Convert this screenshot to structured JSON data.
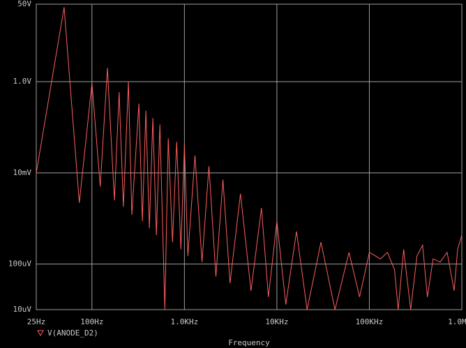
{
  "chart_data": {
    "type": "line",
    "x_label": "Frequency",
    "xscale": "log",
    "yscale": "log",
    "grid": true,
    "xlim": [
      25,
      1000000
    ],
    "ylim": [
      1e-05,
      50
    ],
    "xticks": [
      {
        "value": 25,
        "label": "25Hz"
      },
      {
        "value": 100,
        "label": "100Hz"
      },
      {
        "value": 1000,
        "label": "1.0KHz"
      },
      {
        "value": 10000,
        "label": "10KHz"
      },
      {
        "value": 100000,
        "label": "100KHz"
      },
      {
        "value": 1000000,
        "label": "1.0MHz"
      }
    ],
    "yticks": [
      {
        "value": 1e-05,
        "label": "10uV"
      },
      {
        "value": 0.0001,
        "label": "100uV"
      },
      {
        "value": 0.01,
        "label": "10mV"
      },
      {
        "value": 1,
        "label": "1.0V"
      },
      {
        "value": 50,
        "label": "50V"
      }
    ],
    "x": [
      25,
      50,
      73,
      100,
      123,
      147,
      175,
      197,
      219,
      248,
      270,
      322,
      351,
      383,
      418,
      456,
      498,
      543,
      614,
      669,
      743,
      826,
      916,
      1000,
      1090,
      1300,
      1550,
      1840,
      2190,
      2610,
      3110,
      4040,
      5250,
      6810,
      8110,
      10000,
      12500,
      16300,
      21200,
      30000,
      42500,
      60300,
      78300,
      100000,
      132000,
      157000,
      187000,
      205000,
      235000,
      280000,
      327000,
      377000,
      425000,
      489000,
      582000,
      693000,
      826000,
      901000,
      1000000
    ],
    "series": [
      {
        "name": "V(ANODE_D2)",
        "color": "#ff5f5f",
        "values": [
          0.01,
          43,
          0.0022,
          0.93,
          0.005,
          2.0,
          0.0025,
          0.59,
          0.0018,
          1.0,
          0.0012,
          0.33,
          0.00087,
          0.23,
          0.00061,
          0.16,
          0.00043,
          0.115,
          1e-05,
          0.057,
          0.0003,
          0.048,
          0.00021,
          0.041,
          0.00015,
          0.024,
          0.00011,
          0.014,
          5.3e-05,
          0.0071,
          3.8e-05,
          0.0035,
          2.6e-05,
          0.0017,
          1.9e-05,
          0.00087,
          1.3e-05,
          0.00052,
          1e-05,
          0.0003,
          1e-05,
          0.00018,
          1.9e-05,
          0.00018,
          0.00013,
          0.00018,
          7.6e-05,
          1e-05,
          0.00021,
          1e-05,
          0.00015,
          0.00026,
          1.9e-05,
          0.00013,
          0.00011,
          0.00018,
          2.6e-05,
          0.00021,
          0.00043
        ]
      }
    ]
  }
}
